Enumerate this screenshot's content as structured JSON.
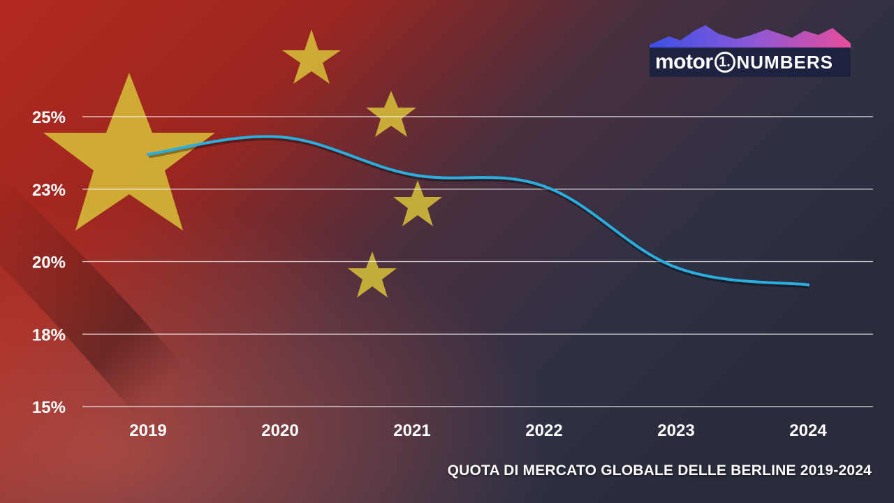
{
  "brand": {
    "name": "motor",
    "mark": "1.",
    "product": "NUMBERS"
  },
  "colors": {
    "line": "#29aee0",
    "gridline": "#ffffff",
    "flag_red": "#b42a20",
    "star_yellow": "#d8c23a",
    "dark_bg": "#2b2d3d"
  },
  "chart_data": {
    "type": "line",
    "title": "QUOTA DI MERCATO GLOBALE DELLE BERLINE 2019-2024",
    "xlabel": "",
    "ylabel": "",
    "categories": [
      "2019",
      "2020",
      "2021",
      "2022",
      "2023",
      "2024"
    ],
    "series": [
      {
        "values": [
          23.7,
          24.3,
          23.0,
          22.6,
          19.8,
          19.2
        ]
      }
    ],
    "ylim": [
      15,
      25
    ],
    "yticks": [
      25,
      22.5,
      20,
      17.5,
      15
    ],
    "ytick_labels": [
      "25%",
      "23%",
      "20%",
      "18%",
      "15%"
    ],
    "grid": true,
    "legend": "none"
  }
}
